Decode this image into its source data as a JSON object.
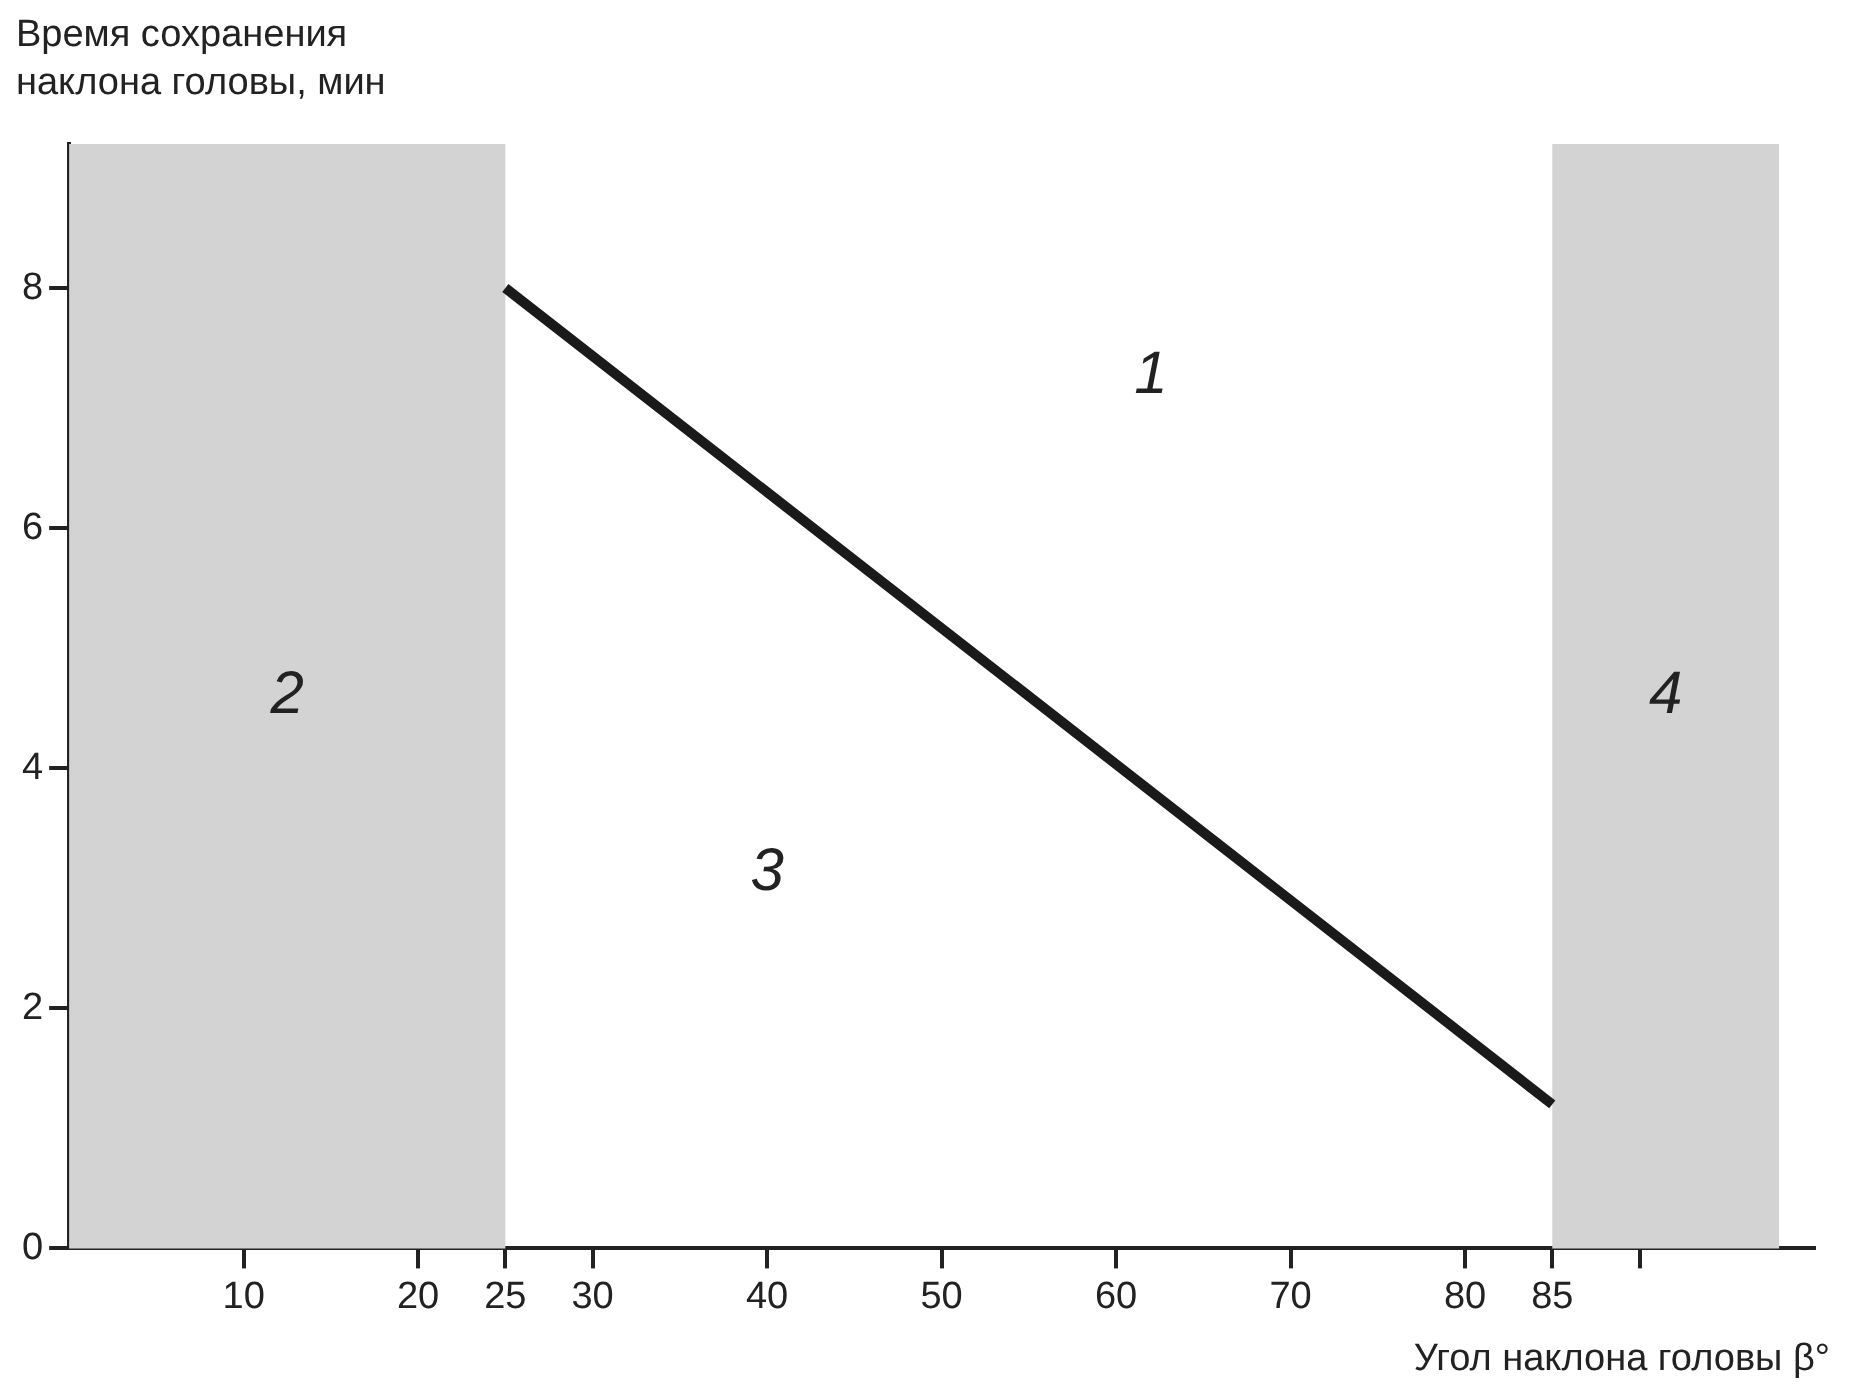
{
  "chart_data": {
    "type": "line",
    "xlabel": "Угол наклона головы β°",
    "ylabel": "Время сохранения\nнаклона головы, мин",
    "x": [
      25,
      85
    ],
    "series": [
      {
        "color": "#1a1a1a",
        "values": [
          8.0,
          1.2
        ]
      }
    ],
    "xlim": [
      0,
      100
    ],
    "xticks": [
      10,
      20,
      25,
      30,
      40,
      50,
      60,
      70,
      80,
      85,
      {
        "value": 90,
        "label": null
      }
    ],
    "ylim": [
      0,
      9.2
    ],
    "yticks": [
      0,
      2,
      4,
      6,
      8
    ],
    "bands": [
      {
        "axis": "x",
        "from": 0,
        "to": 25,
        "label": "2",
        "color": "#d3d3d3"
      },
      {
        "axis": "x",
        "from": 85,
        "to": 98,
        "label": "4",
        "color": "#d3d3d3"
      }
    ],
    "annotations": [
      "1",
      "3"
    ],
    "grid": false,
    "legend": false,
    "marker": "none",
    "line_style": "solid"
  }
}
